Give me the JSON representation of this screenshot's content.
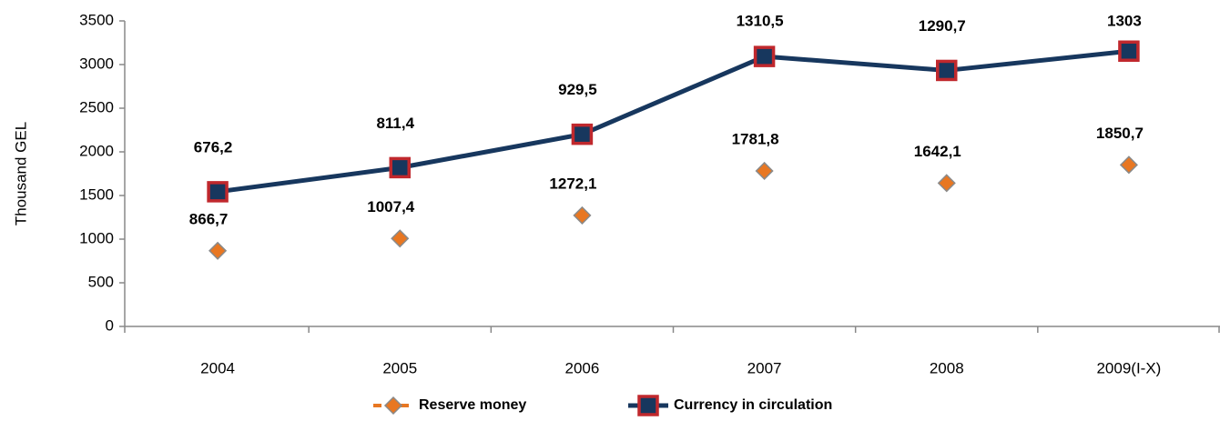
{
  "chart_data": {
    "type": "line",
    "stacked": true,
    "ylabel": "Thousand GEL",
    "categories": [
      "2004",
      "2005",
      "2006",
      "2007",
      "2008",
      "2009(I-X)"
    ],
    "series": [
      {
        "name": "Reserve money",
        "color": "#e87722",
        "marker": "diamond",
        "line": false,
        "values": [
          866.7,
          1007.4,
          1272.1,
          1781.8,
          1642.1,
          1850.7
        ],
        "value_labels": [
          "866,7",
          "1007,4",
          "1272,1",
          "1781,8",
          "1642,1",
          "1850,7"
        ]
      },
      {
        "name": "Currency in circulation",
        "color": "#17375e",
        "marker": "square",
        "marker_edge": "#c0282d",
        "line": true,
        "values": [
          676.2,
          811.4,
          929.5,
          1310.5,
          1290.7,
          1303
        ],
        "value_labels": [
          "676,2",
          "811,4",
          "929,5",
          "1310,5",
          "1290,7",
          "1303"
        ]
      }
    ],
    "ylim": [
      0,
      3500
    ],
    "yticks": [
      0,
      500,
      1000,
      1500,
      2000,
      2500,
      3000,
      3500
    ],
    "grid": false,
    "legend": "bottom"
  }
}
